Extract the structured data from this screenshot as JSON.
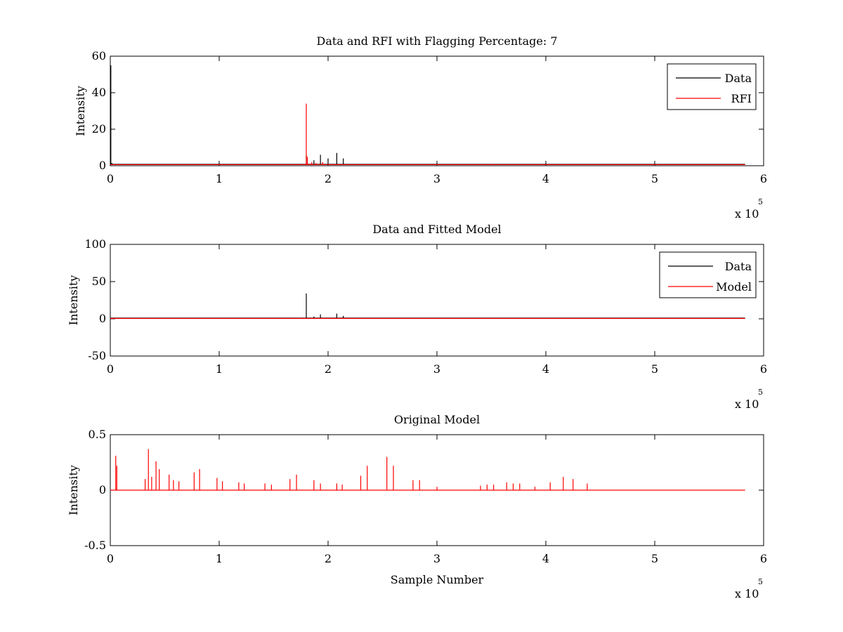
{
  "colors": {
    "data": "#000000",
    "rfi": "#ff0000",
    "model": "#ff0000",
    "background": "#ffffff"
  },
  "chart_data": [
    {
      "type": "line",
      "title": "Data and RFI with Flagging Percentage: 7",
      "xlabel": "",
      "ylabel": "Intensity",
      "xlim": [
        0,
        600000
      ],
      "ylim": [
        0,
        60
      ],
      "xticks": [
        0,
        1,
        2,
        3,
        4,
        5,
        6
      ],
      "yticks": [
        0,
        20,
        40,
        60
      ],
      "x_multiplier": "x 10",
      "x_multiplier_exp": "5",
      "legend": {
        "position": "top-right",
        "entries": [
          "Data",
          "RFI"
        ]
      },
      "series": [
        {
          "name": "Data",
          "color": "#000000",
          "baseline": 0.8,
          "points": [
            [
              0,
              0
            ],
            [
              500,
              55
            ],
            [
              1500,
              1.5
            ],
            [
              20000,
              0.5
            ],
            [
              180000,
              6
            ],
            [
              187000,
              3
            ],
            [
              193000,
              6
            ],
            [
              200000,
              4
            ],
            [
              208000,
              7
            ],
            [
              214000,
              4
            ],
            [
              575000,
              0.6
            ],
            [
              583000,
              0.8
            ]
          ]
        },
        {
          "name": "RFI",
          "color": "#ff0000",
          "baseline": 0.6,
          "points": [
            [
              180000,
              34
            ],
            [
              181000,
              5
            ],
            [
              185000,
              2
            ],
            [
              189000,
              1.5
            ],
            [
              195000,
              2
            ],
            [
              350000,
              1
            ],
            [
              420000,
              0.8
            ]
          ]
        }
      ]
    },
    {
      "type": "line",
      "title": "Data and Fitted Model",
      "xlabel": "",
      "ylabel": "Intensity",
      "xlim": [
        0,
        600000
      ],
      "ylim": [
        -50,
        100
      ],
      "xticks": [
        0,
        1,
        2,
        3,
        4,
        5,
        6
      ],
      "yticks": [
        -50,
        0,
        50,
        100
      ],
      "x_multiplier": "x 10",
      "x_multiplier_exp": "5",
      "legend": {
        "position": "top-right",
        "entries": [
          "Data",
          "Model"
        ]
      },
      "series": [
        {
          "name": "Data",
          "color": "#000000",
          "baseline": 1,
          "points": [
            [
              180000,
              34
            ],
            [
              187000,
              3
            ],
            [
              193000,
              6
            ],
            [
              208000,
              7
            ],
            [
              214000,
              4
            ]
          ]
        },
        {
          "name": "Model",
          "color": "#ff0000",
          "baseline": 0.5,
          "points": []
        }
      ]
    },
    {
      "type": "line",
      "title": "Original Model",
      "xlabel": "Sample Number",
      "ylabel": "Intensity",
      "xlim": [
        0,
        600000
      ],
      "ylim": [
        -0.5,
        0.5
      ],
      "xticks": [
        0,
        1,
        2,
        3,
        4,
        5,
        6
      ],
      "yticks": [
        -0.5,
        0,
        0.5
      ],
      "x_multiplier": "x 10",
      "x_multiplier_exp": "5",
      "series": [
        {
          "color": "#ff0000",
          "baseline": 0.0,
          "points": [
            [
              5000,
              0.31
            ],
            [
              6000,
              0.22
            ],
            [
              32000,
              0.1
            ],
            [
              35000,
              0.37
            ],
            [
              38000,
              0.12
            ],
            [
              42000,
              0.26
            ],
            [
              45000,
              0.19
            ],
            [
              54000,
              0.14
            ],
            [
              58000,
              0.09
            ],
            [
              63000,
              0.08
            ],
            [
              77000,
              0.16
            ],
            [
              82000,
              0.19
            ],
            [
              98000,
              0.11
            ],
            [
              103000,
              0.08
            ],
            [
              118000,
              0.07
            ],
            [
              123000,
              0.06
            ],
            [
              142000,
              0.06
            ],
            [
              148000,
              0.05
            ],
            [
              165000,
              0.1
            ],
            [
              171000,
              0.14
            ],
            [
              187000,
              0.09
            ],
            [
              193000,
              0.06
            ],
            [
              208000,
              0.06
            ],
            [
              213000,
              0.05
            ],
            [
              230000,
              0.13
            ],
            [
              236000,
              0.22
            ],
            [
              254000,
              0.3
            ],
            [
              260000,
              0.22
            ],
            [
              278000,
              0.09
            ],
            [
              284000,
              0.09
            ],
            [
              300000,
              0.03
            ],
            [
              340000,
              0.04
            ],
            [
              346000,
              0.05
            ],
            [
              352000,
              0.05
            ],
            [
              364000,
              0.07
            ],
            [
              370000,
              0.06
            ],
            [
              376000,
              0.06
            ],
            [
              390000,
              0.03
            ],
            [
              404000,
              0.07
            ],
            [
              416000,
              0.12
            ],
            [
              425000,
              0.1
            ],
            [
              438000,
              0.06
            ]
          ]
        }
      ]
    }
  ]
}
